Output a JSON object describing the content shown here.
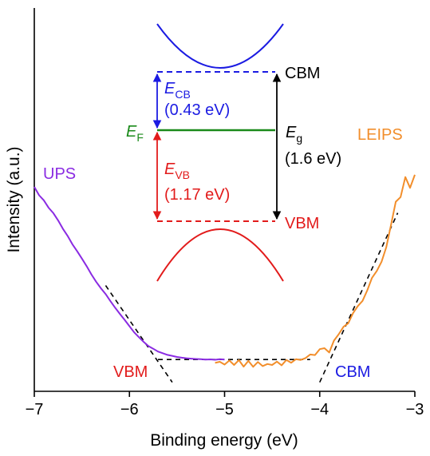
{
  "chart_data": {
    "type": "line",
    "xlabel": "Binding energy (eV)",
    "ylabel": "Intensity (a.u.)",
    "xlim": [
      -7,
      -3
    ],
    "ylim": [
      0,
      100
    ],
    "x_ticks": [
      -7,
      -6,
      -5,
      -4,
      -3
    ],
    "x_tick_labels": [
      "−7",
      "−6",
      "−5",
      "−4",
      "−3"
    ],
    "y_ticks_shown": false,
    "grid": false,
    "legend": "none (series labelled directly on plot)",
    "series": [
      {
        "name": "UPS",
        "color": "#8a2be2",
        "x": [
          -7.0,
          -6.95,
          -6.9,
          -6.85,
          -6.8,
          -6.75,
          -6.7,
          -6.65,
          -6.6,
          -6.55,
          -6.5,
          -6.45,
          -6.4,
          -6.35,
          -6.3,
          -6.25,
          -6.2,
          -6.15,
          -6.1,
          -6.05,
          -6.0,
          -5.95,
          -5.9,
          -5.85,
          -5.8,
          -5.75,
          -5.7,
          -5.65,
          -5.6,
          -5.55,
          -5.5,
          -5.45,
          -5.4,
          -5.35,
          -5.3,
          -5.25,
          -5.2,
          -5.15,
          -5.1,
          -5.05,
          -5.0
        ],
        "y": [
          100,
          95.5,
          92.8,
          88.8,
          85.9,
          82.0,
          77.5,
          73.7,
          69.2,
          65.4,
          61.5,
          57.4,
          53.0,
          49.0,
          45.5,
          42.4,
          38.6,
          35.0,
          31.7,
          28.5,
          25.1,
          21.8,
          19.2,
          16.7,
          14.4,
          13.0,
          11.5,
          10.6,
          9.7,
          9.2,
          8.6,
          8.2,
          7.9,
          7.7,
          7.5,
          7.4,
          7.2,
          7.3,
          7.1,
          7.4,
          7.2
        ]
      },
      {
        "name": "LEIPS",
        "color": "#f28e2b",
        "x": [
          -5.1,
          -5.05,
          -5.0,
          -4.95,
          -4.9,
          -4.85,
          -4.8,
          -4.75,
          -4.7,
          -4.65,
          -4.6,
          -4.55,
          -4.5,
          -4.45,
          -4.4,
          -4.35,
          -4.3,
          -4.25,
          -4.2,
          -4.15,
          -4.1,
          -4.05,
          -4.0,
          -3.95,
          -3.9,
          -3.85,
          -3.8,
          -3.75,
          -3.7,
          -3.65,
          -3.6,
          -3.55,
          -3.5,
          -3.45,
          -3.4,
          -3.35,
          -3.3,
          -3.25,
          -3.2,
          -3.15,
          -3.1,
          -3.05,
          -3.0
        ],
        "y": [
          5.4,
          6.0,
          4.5,
          6.7,
          4.3,
          6.9,
          3.4,
          6.5,
          3.3,
          5.9,
          3.7,
          4.8,
          4.3,
          6.1,
          4.1,
          7.0,
          5.5,
          7.4,
          7.0,
          8.0,
          9.9,
          9.6,
          12.8,
          13.3,
          11.0,
          17.4,
          20.8,
          24.8,
          26.7,
          32.1,
          35.9,
          38.7,
          44.4,
          51.1,
          54.8,
          59.8,
          67.6,
          79.7,
          92.0,
          94.5,
          105.3,
          99.5,
          106.5
        ]
      }
    ],
    "fit_lines": [
      {
        "style": "dashed",
        "x": [
          -6.25,
          -5.55
        ],
        "y": [
          47,
          -5
        ]
      },
      {
        "style": "dashed",
        "x": [
          -4.0,
          -3.18
        ],
        "y": [
          -5,
          86
        ]
      },
      {
        "style": "dashed",
        "x": [
          -5.7,
          -4.1
        ],
        "y": [
          7.2,
          7.2
        ]
      }
    ],
    "edge_labels": [
      {
        "text": "VBM",
        "color": "#e21b1b",
        "x": -5.6,
        "y": 7.2
      },
      {
        "text": "CBM",
        "color": "#1b1be2",
        "x": -3.9,
        "y": 7.2
      }
    ]
  },
  "labels": {
    "ups": "UPS",
    "leips": "LEIPS",
    "cbm": "CBM",
    "vbm": "VBM",
    "ecb_sym": "E",
    "ecb_sub": "CB",
    "ecb_val": "(0.43 eV)",
    "evb_sym": "E",
    "evb_sub": "VB",
    "evb_val": "(1.17 eV)",
    "ef_sym": "E",
    "ef_sub": "F",
    "eg_sym": "E",
    "eg_sub": "g",
    "eg_val": "(1.6 eV)"
  },
  "colors": {
    "ups": "#8a2be2",
    "leips": "#f28e2b",
    "conduction": "#1b1be2",
    "valence": "#e21b1b",
    "fermi": "#1a8a1a",
    "gap": "#000000"
  }
}
